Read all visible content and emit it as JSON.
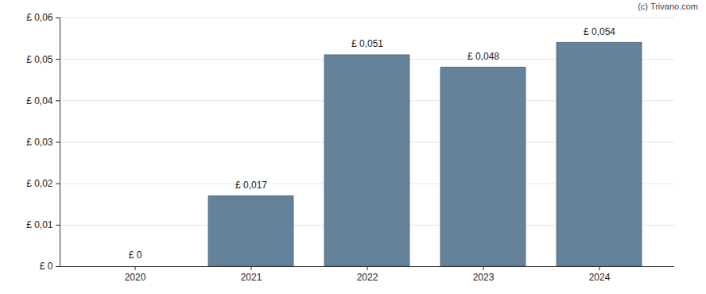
{
  "chart_data": {
    "type": "bar",
    "annotation": "(c) Trivano.com",
    "categories": [
      "2020",
      "2021",
      "2022",
      "2023",
      "2024"
    ],
    "values": [
      0,
      0.017,
      0.051,
      0.048,
      0.054
    ],
    "value_labels": [
      "£ 0",
      "£ 0,017",
      "£ 0,051",
      "£ 0,048",
      "£ 0,054"
    ],
    "data_labels": true,
    "color": "#64829a",
    "ylim": [
      0,
      0.06
    ],
    "yticks": [
      {
        "value": 0,
        "label": "£ 0"
      },
      {
        "value": 0.01,
        "label": "£ 0,01"
      },
      {
        "value": 0.02,
        "label": "£ 0,02"
      },
      {
        "value": 0.03,
        "label": "£ 0,03"
      },
      {
        "value": 0.04,
        "label": "£ 0,04"
      },
      {
        "value": 0.05,
        "label": "£ 0,05"
      },
      {
        "value": 0.06,
        "label": "£ 0,06"
      }
    ],
    "grid": true
  }
}
